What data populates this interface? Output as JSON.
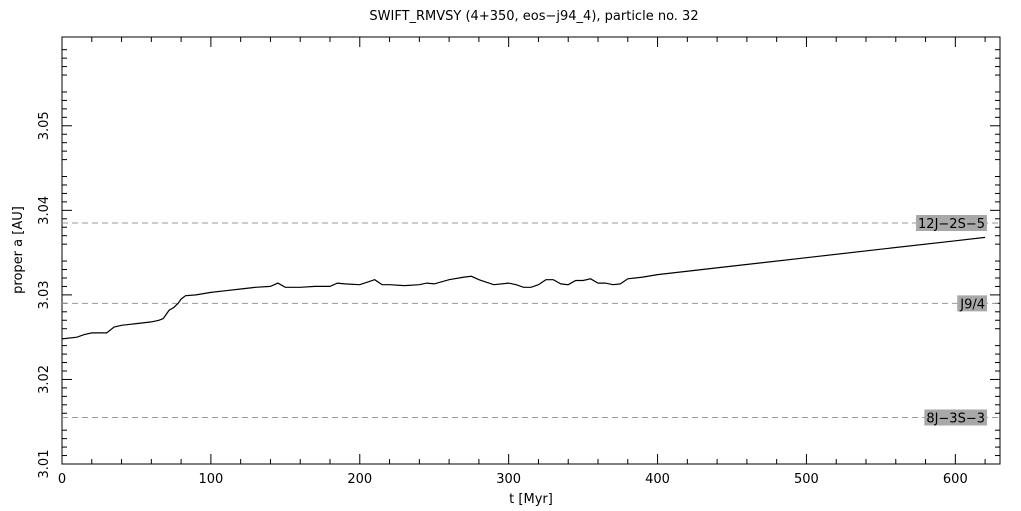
{
  "chart_data": {
    "type": "line",
    "title": "SWIFT_RMVSY (4+350, eos−j94_4), particle no. 32",
    "xlabel": "t [Myr]",
    "ylabel": "proper a [AU]",
    "xlim": [
      0,
      630
    ],
    "ylim": [
      3.01,
      3.0605
    ],
    "x_ticks": [
      0,
      100,
      200,
      300,
      400,
      500,
      600
    ],
    "x_tick_labels": [
      "0",
      "100",
      "200",
      "300",
      "400",
      "500",
      "600"
    ],
    "y_ticks": [
      3.01,
      3.02,
      3.03,
      3.04,
      3.05
    ],
    "y_tick_labels": [
      "3.01",
      "3.02",
      "3.03",
      "3.04",
      "3.05"
    ],
    "grid": false,
    "series": [
      {
        "color": "#000000",
        "x": [
          0,
          10,
          15,
          20,
          30,
          35,
          40,
          50,
          60,
          65,
          68,
          72,
          75,
          78,
          80,
          83,
          90,
          100,
          110,
          120,
          130,
          140,
          145,
          150,
          160,
          170,
          180,
          185,
          190,
          200,
          205,
          210,
          215,
          220,
          230,
          240,
          245,
          250,
          260,
          270,
          275,
          280,
          285,
          290,
          300,
          305,
          310,
          315,
          320,
          325,
          330,
          335,
          340,
          345,
          350,
          355,
          360,
          365,
          370,
          375,
          380,
          390,
          400,
          450,
          500,
          550,
          600,
          620
        ],
        "y": [
          3.0248,
          3.025,
          3.0253,
          3.0255,
          3.0255,
          3.0262,
          3.0264,
          3.0266,
          3.0268,
          3.027,
          3.0272,
          3.0282,
          3.0285,
          3.029,
          3.0295,
          3.0299,
          3.03,
          3.0303,
          3.0305,
          3.0307,
          3.0309,
          3.031,
          3.0314,
          3.0309,
          3.0309,
          3.031,
          3.031,
          3.0314,
          3.0313,
          3.0312,
          3.0315,
          3.0318,
          3.0312,
          3.0312,
          3.0311,
          3.0312,
          3.0314,
          3.0313,
          3.0318,
          3.0321,
          3.0322,
          3.0318,
          3.0315,
          3.0312,
          3.0314,
          3.0312,
          3.0309,
          3.0309,
          3.0312,
          3.0318,
          3.0318,
          3.0313,
          3.0312,
          3.0317,
          3.0317,
          3.0319,
          3.0314,
          3.0314,
          3.0312,
          3.0313,
          3.0319,
          3.0321,
          3.0324,
          3.0334,
          3.0344,
          3.0354,
          3.0364,
          3.0368
        ]
      }
    ],
    "resonances": [
      {
        "label": "12J−2S−5",
        "a": 3.0385
      },
      {
        "label": "J9/4",
        "a": 3.029
      },
      {
        "label": "8J−3S−3",
        "a": 3.0155
      }
    ]
  }
}
